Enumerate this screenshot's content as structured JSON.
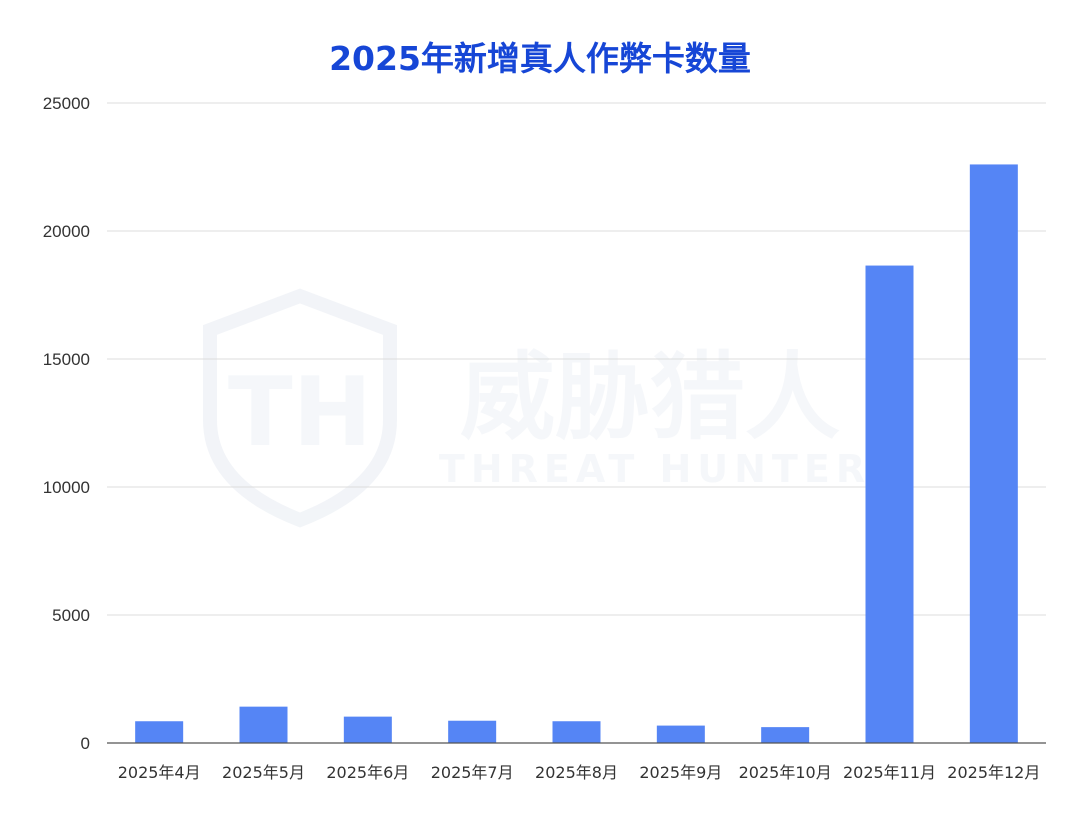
{
  "chart_data": {
    "type": "bar",
    "title": "2025年新增真人作弊卡数量",
    "categories": [
      "2025年4月",
      "2025年5月",
      "2025年6月",
      "2025年7月",
      "2025年8月",
      "2025年9月",
      "2025年10月",
      "2025年11月",
      "2025年12月"
    ],
    "values": [
      850,
      1420,
      1030,
      870,
      850,
      680,
      620,
      18650,
      22600
    ],
    "ylim": [
      0,
      25000
    ],
    "yticks": [
      "0",
      "5000",
      "10000",
      "15000",
      "20000",
      "25000"
    ],
    "xlabel": "",
    "ylabel": "",
    "grid": true,
    "bar_color": "#5585f5",
    "title_color": "#1646d6"
  },
  "watermark": {
    "cn": "威胁猎人",
    "en": "THREAT HUNTER",
    "logo_letters": "TH"
  }
}
